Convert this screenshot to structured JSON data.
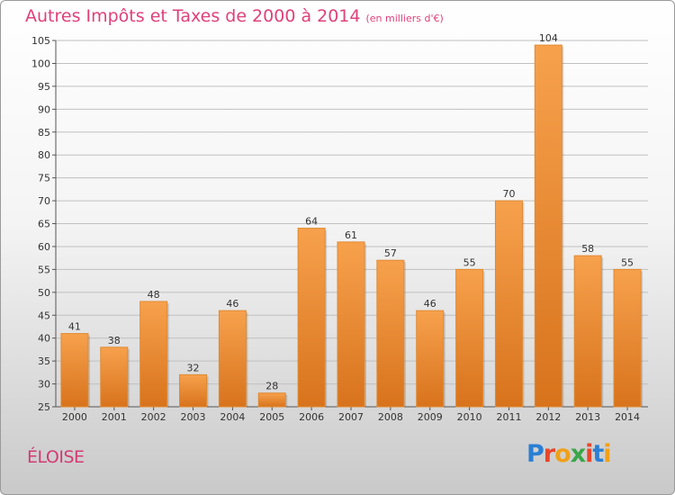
{
  "header": {
    "title": "Autres Impôts et Taxes de 2000 à 2014",
    "unit": "(en milliers d'€)"
  },
  "footer": {
    "commune": "ÉLOISE",
    "logo": "Proxiti"
  },
  "colors": {
    "title": "#e0407a",
    "bar_top": "#f7a14d",
    "bar_bottom": "#d8731c",
    "grid": "#c0c0c0"
  },
  "chart_data": {
    "type": "bar",
    "title": "Autres Impôts et Taxes de 2000 à 2014",
    "subtitle": "(en milliers d'€)",
    "xlabel": "",
    "ylabel": "",
    "categories": [
      "2000",
      "2001",
      "2002",
      "2003",
      "2004",
      "2005",
      "2006",
      "2007",
      "2008",
      "2009",
      "2010",
      "2011",
      "2012",
      "2013",
      "2014"
    ],
    "values": [
      41,
      38,
      48,
      32,
      46,
      28,
      64,
      61,
      57,
      46,
      55,
      70,
      104,
      58,
      55
    ],
    "ylim": [
      25,
      105
    ],
    "yticks": [
      25,
      30,
      35,
      40,
      45,
      50,
      55,
      60,
      65,
      70,
      75,
      80,
      85,
      90,
      95,
      100,
      105
    ],
    "grid": true,
    "legend": "none"
  }
}
